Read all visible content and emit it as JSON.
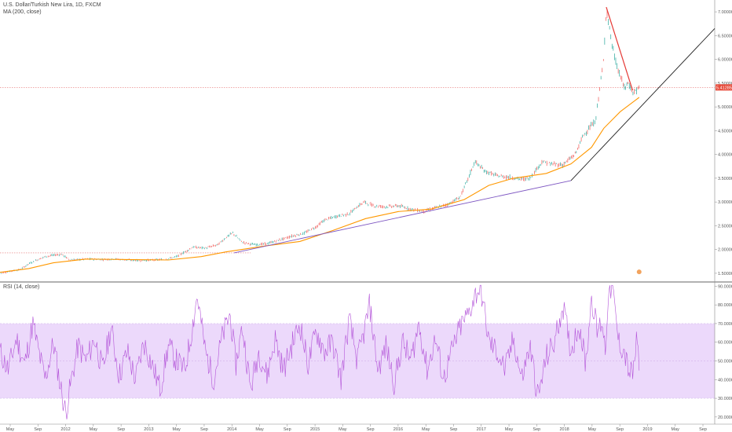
{
  "main_pane": {
    "title": "U.S. Dollar/Turkish New Lira, 1D, FXCM",
    "indicator": "MA (200, close)"
  },
  "rsi_pane": {
    "title": "RSI (14, close)"
  },
  "last_price_label": "5.41285",
  "colors": {
    "background": "#ffffff",
    "candle_up": "#26a69a",
    "candle_down": "#ef5350",
    "ma": "#ff9800",
    "trendline_lower": "#7e57c2",
    "trendline_upper": "#222222",
    "downtrend": "#e53935",
    "rsi_line": "#b455d9",
    "rsi_band": "#ecd9fb",
    "price_label": "#e74c3c"
  },
  "chart_data": [
    {
      "type": "line",
      "title": "U.S. Dollar/Turkish New Lira, 1D, FXCM",
      "xlabel": "",
      "ylabel": "",
      "x_ticks": [
        "May",
        "Sep",
        "2012",
        "May",
        "Sep",
        "2013",
        "May",
        "Sep",
        "2014",
        "May",
        "Sep",
        "2015",
        "May",
        "Sep",
        "2016",
        "May",
        "Sep",
        "2017",
        "May",
        "Sep",
        "2018",
        "May",
        "Sep",
        "2019",
        "May",
        "Sep"
      ],
      "y_ticks": [
        "7.00000",
        "6.50000",
        "6.00000",
        "5.50000",
        "5.00000",
        "4.50000",
        "4.00000",
        "3.50000",
        "3.00000",
        "2.50000",
        "2.00000",
        "1.50000"
      ],
      "ylim": [
        1.35,
        7.15
      ],
      "xlim": [
        2011.25,
        2019.95
      ],
      "series": [
        {
          "name": "U.S. Dollar/Turkish New Lira",
          "x": [
            2011.25,
            2011.4,
            2011.5,
            2011.6,
            2011.7,
            2011.8,
            2011.9,
            2012.0,
            2012.1,
            2012.2,
            2012.35,
            2012.5,
            2012.65,
            2012.8,
            2012.95,
            2013.1,
            2013.25,
            2013.4,
            2013.5,
            2013.6,
            2013.75,
            2013.9,
            2014.0,
            2014.08,
            2014.2,
            2014.35,
            2014.5,
            2014.65,
            2014.8,
            2014.95,
            2015.1,
            2015.2,
            2015.35,
            2015.5,
            2015.6,
            2015.68,
            2015.8,
            2015.95,
            2016.1,
            2016.25,
            2016.4,
            2016.55,
            2016.7,
            2016.85,
            2016.95,
            2017.03,
            2017.15,
            2017.3,
            2017.45,
            2017.6,
            2017.7,
            2017.85,
            2017.95,
            2018.1,
            2018.25,
            2018.35,
            2018.42,
            2018.5,
            2018.55,
            2018.6,
            2018.63,
            2018.7,
            2018.75,
            2018.85,
            2018.9,
            2018.95,
            2019.0,
            2019.03
          ],
          "values": [
            1.5,
            1.55,
            1.58,
            1.7,
            1.78,
            1.85,
            1.88,
            1.9,
            1.78,
            1.79,
            1.8,
            1.79,
            1.8,
            1.78,
            1.77,
            1.78,
            1.79,
            1.85,
            1.95,
            2.05,
            2.03,
            2.1,
            2.25,
            2.35,
            2.15,
            2.1,
            2.12,
            2.2,
            2.28,
            2.34,
            2.48,
            2.62,
            2.7,
            2.75,
            2.9,
            3.0,
            2.92,
            2.9,
            2.92,
            2.85,
            2.8,
            2.88,
            2.95,
            3.1,
            3.5,
            3.85,
            3.65,
            3.55,
            3.52,
            3.48,
            3.5,
            3.85,
            3.8,
            3.78,
            4.0,
            4.4,
            4.55,
            4.7,
            5.4,
            6.0,
            7.1,
            6.3,
            5.9,
            5.4,
            5.5,
            5.3,
            5.35,
            5.41
          ]
        },
        {
          "name": "MA (200, close)",
          "x": [
            2011.25,
            2011.6,
            2011.9,
            2012.3,
            2012.8,
            2013.3,
            2013.7,
            2014.0,
            2014.5,
            2014.9,
            2015.3,
            2015.7,
            2016.1,
            2016.5,
            2016.9,
            2017.2,
            2017.5,
            2017.9,
            2018.2,
            2018.45,
            2018.6,
            2018.8,
            2019.03
          ],
          "values": [
            1.52,
            1.6,
            1.72,
            1.8,
            1.79,
            1.78,
            1.85,
            1.95,
            2.08,
            2.17,
            2.4,
            2.65,
            2.8,
            2.85,
            3.05,
            3.35,
            3.5,
            3.6,
            3.8,
            4.15,
            4.55,
            4.9,
            5.2
          ]
        }
      ]
    },
    {
      "type": "line",
      "title": "RSI (14, close)",
      "xlabel": "",
      "ylabel": "",
      "y_ticks": [
        "90.0000",
        "80.0000",
        "70.0000",
        "60.0000",
        "50.0000",
        "40.0000",
        "30.0000",
        "20.0000"
      ],
      "ylim": [
        17,
        91
      ],
      "band": [
        30,
        70
      ],
      "series": [
        {
          "name": "RSI (14, close)",
          "x": [
            2011.25,
            2011.35,
            2011.45,
            2011.55,
            2011.65,
            2011.72,
            2011.8,
            2011.9,
            2011.98,
            2012.05,
            2012.12,
            2012.2,
            2012.3,
            2012.4,
            2012.5,
            2012.6,
            2012.7,
            2012.8,
            2012.9,
            2013.0,
            2013.1,
            2013.2,
            2013.3,
            2013.4,
            2013.5,
            2013.58,
            2013.65,
            2013.75,
            2013.85,
            2013.95,
            2014.05,
            2014.12,
            2014.2,
            2014.3,
            2014.4,
            2014.5,
            2014.6,
            2014.7,
            2014.8,
            2014.9,
            2015.0,
            2015.1,
            2015.2,
            2015.3,
            2015.4,
            2015.5,
            2015.6,
            2015.68,
            2015.75,
            2015.85,
            2015.95,
            2016.05,
            2016.15,
            2016.25,
            2016.35,
            2016.45,
            2016.55,
            2016.65,
            2016.75,
            2016.85,
            2016.95,
            2017.03,
            2017.1,
            2017.2,
            2017.3,
            2017.4,
            2017.5,
            2017.6,
            2017.7,
            2017.8,
            2017.9,
            2018.0,
            2018.1,
            2018.2,
            2018.3,
            2018.38,
            2018.45,
            2018.52,
            2018.58,
            2018.62,
            2018.65,
            2018.7,
            2018.78,
            2018.85,
            2018.9,
            2018.95,
            2019.0,
            2019.03
          ],
          "values": [
            55,
            45,
            62,
            48,
            70,
            55,
            40,
            60,
            38,
            22,
            40,
            58,
            50,
            62,
            45,
            68,
            42,
            55,
            40,
            60,
            48,
            35,
            58,
            50,
            45,
            65,
            85,
            55,
            40,
            62,
            75,
            48,
            68,
            35,
            55,
            42,
            62,
            45,
            58,
            70,
            48,
            66,
            55,
            60,
            40,
            72,
            50,
            65,
            80,
            45,
            58,
            38,
            60,
            50,
            70,
            45,
            62,
            40,
            55,
            68,
            75,
            85,
            90,
            60,
            55,
            45,
            62,
            40,
            58,
            30,
            52,
            60,
            80,
            55,
            70,
            48,
            85,
            65,
            72,
            55,
            85,
            90,
            60,
            55,
            45,
            42,
            60,
            50
          ]
        }
      ]
    }
  ]
}
